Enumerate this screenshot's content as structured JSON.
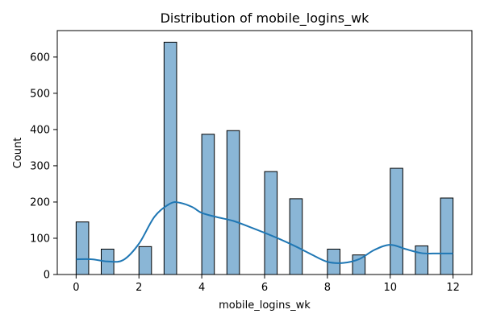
{
  "chart_data": {
    "type": "bar",
    "title": "Distribution of mobile_logins_wk",
    "xlabel": "mobile_logins_wk",
    "ylabel": "Count",
    "xlim": [
      -0.6,
      12.6
    ],
    "ylim": [
      0,
      673
    ],
    "bin_width": 0.4,
    "x_ticks": [
      0,
      2,
      4,
      6,
      8,
      10,
      12
    ],
    "y_ticks": [
      0,
      100,
      200,
      300,
      400,
      500,
      600
    ],
    "grid": false,
    "colors": {
      "bar_fill": "#8ab6d6",
      "bar_stroke": "#000000",
      "kde_line": "#1f77b4",
      "axes": "#000000"
    },
    "bins": [
      {
        "x0": 0.0,
        "x1": 0.4,
        "count": 145
      },
      {
        "x0": 0.8,
        "x1": 1.2,
        "count": 70
      },
      {
        "x0": 2.0,
        "x1": 2.4,
        "count": 77
      },
      {
        "x0": 2.8,
        "x1": 3.2,
        "count": 641
      },
      {
        "x0": 4.0,
        "x1": 4.4,
        "count": 387
      },
      {
        "x0": 4.8,
        "x1": 5.2,
        "count": 397
      },
      {
        "x0": 6.0,
        "x1": 6.4,
        "count": 284
      },
      {
        "x0": 6.8,
        "x1": 7.2,
        "count": 209
      },
      {
        "x0": 8.0,
        "x1": 8.4,
        "count": 70
      },
      {
        "x0": 8.8,
        "x1": 9.2,
        "count": 54
      },
      {
        "x0": 10.0,
        "x1": 10.4,
        "count": 293
      },
      {
        "x0": 10.8,
        "x1": 11.2,
        "count": 79
      },
      {
        "x0": 11.6,
        "x1": 12.0,
        "count": 211
      }
    ],
    "kde": {
      "x": [
        0,
        0.5,
        1,
        1.5,
        2,
        2.5,
        3,
        3.3,
        3.7,
        4,
        4.5,
        5,
        5.5,
        6,
        6.5,
        7,
        7.5,
        8,
        8.5,
        9,
        9.5,
        10,
        10.5,
        11,
        11.5,
        12
      ],
      "y": [
        42,
        42,
        36,
        40,
        85,
        160,
        196,
        198,
        186,
        170,
        158,
        148,
        132,
        115,
        97,
        77,
        55,
        35,
        32,
        42,
        68,
        82,
        70,
        59,
        58,
        58
      ]
    }
  }
}
